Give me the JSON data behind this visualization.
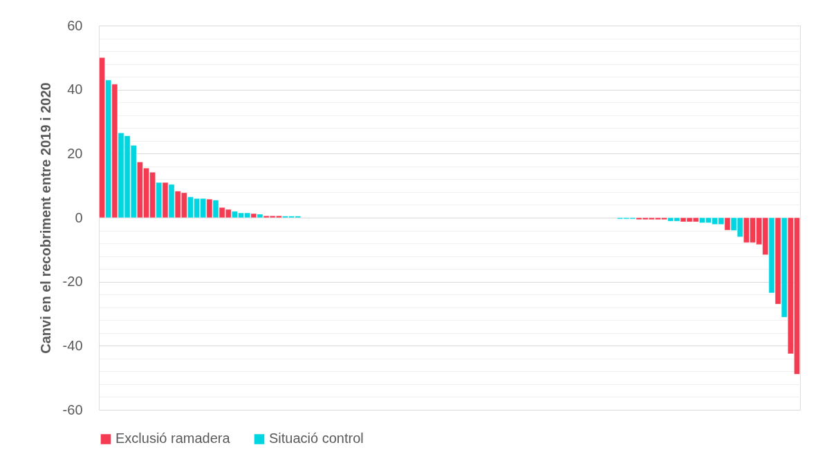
{
  "chart_data": {
    "type": "bar",
    "ylabel": "Canvi en el recobriment entre 2019 i 2020",
    "categories": [
      null,
      null,
      null,
      null,
      null,
      null,
      null,
      null,
      null,
      null,
      null,
      null,
      null,
      null,
      null,
      null,
      null,
      null,
      null,
      null,
      null,
      null,
      null,
      null,
      null,
      null,
      null,
      null,
      null,
      null,
      null,
      null,
      null,
      null,
      null,
      null,
      null,
      null,
      null,
      null,
      null,
      null,
      null,
      null,
      null,
      null,
      null,
      null,
      null,
      null,
      null,
      null,
      null,
      null,
      null,
      null,
      null,
      null,
      null,
      null,
      null,
      null,
      null,
      null,
      null,
      null,
      null,
      null,
      null,
      null,
      null,
      null,
      null,
      null,
      null,
      null,
      null,
      null,
      null,
      null,
      null,
      null,
      null,
      null,
      null,
      null,
      null,
      null,
      null,
      null,
      null,
      null,
      null,
      null,
      null,
      null,
      null,
      null,
      null,
      null,
      null,
      null,
      null,
      null,
      null,
      null,
      null,
      null,
      null,
      null,
      null
    ],
    "series": [
      {
        "name": "Exclusió ramadera",
        "color": "#f53b51",
        "values": [
          50,
          null,
          41.7,
          null,
          null,
          null,
          17.4,
          15.5,
          14.2,
          null,
          11,
          null,
          8.3,
          7.8,
          null,
          null,
          null,
          5.8,
          null,
          3.2,
          2.6,
          null,
          null,
          null,
          1.3,
          null,
          0.6,
          0.6,
          0.6,
          null,
          null,
          null,
          null,
          null,
          null,
          null,
          null,
          null,
          null,
          null,
          null,
          null,
          null,
          null,
          null,
          null,
          null,
          null,
          null,
          null,
          null,
          null,
          null,
          null,
          null,
          null,
          null,
          null,
          null,
          null,
          null,
          null,
          null,
          null,
          null,
          null,
          null,
          null,
          null,
          null,
          null,
          null,
          null,
          null,
          null,
          null,
          null,
          null,
          null,
          null,
          null,
          null,
          null,
          null,
          null,
          -0.6,
          -0.6,
          -0.6,
          -0.6,
          -0.6,
          null,
          null,
          -1.3,
          -1.3,
          -1.3,
          null,
          null,
          null,
          null,
          -3.9,
          null,
          null,
          -7.8,
          -7.8,
          -8.4,
          -11.6,
          null,
          -27,
          null,
          -42.5,
          -48.9
        ]
      },
      {
        "name": "Situació control",
        "color": "#00d5e0",
        "values": [
          null,
          43,
          null,
          26.5,
          25.6,
          22.6,
          null,
          null,
          null,
          11,
          null,
          10.4,
          null,
          null,
          6.5,
          6,
          6,
          null,
          5.5,
          null,
          null,
          2,
          1.5,
          1.5,
          null,
          1.1,
          null,
          null,
          null,
          0.5,
          0.5,
          0.5,
          null,
          null,
          null,
          null,
          null,
          null,
          null,
          null,
          null,
          null,
          null,
          null,
          null,
          null,
          null,
          null,
          null,
          null,
          null,
          null,
          null,
          null,
          null,
          null,
          null,
          null,
          null,
          null,
          null,
          null,
          null,
          null,
          null,
          null,
          null,
          null,
          null,
          null,
          null,
          null,
          null,
          null,
          null,
          null,
          null,
          null,
          null,
          null,
          null,
          null,
          -0.4,
          -0.4,
          -0.4,
          null,
          null,
          null,
          null,
          null,
          -1.1,
          -1.1,
          null,
          null,
          null,
          -1.6,
          -1.6,
          -2.1,
          -2.1,
          null,
          -4,
          -6,
          null,
          null,
          null,
          null,
          -23.5,
          null,
          -31.1,
          null,
          null
        ]
      }
    ],
    "ylim": [
      -60,
      60
    ],
    "yticks": [
      -60,
      {
        "value": -56,
        "label": null
      },
      {
        "value": -52,
        "label": null
      },
      {
        "value": -48,
        "label": null
      },
      {
        "value": -44,
        "label": null
      },
      -40,
      {
        "value": -36,
        "label": null
      },
      {
        "value": -32,
        "label": null
      },
      {
        "value": -28,
        "label": null
      },
      {
        "value": -24,
        "label": null
      },
      -20,
      {
        "value": -16,
        "label": null
      },
      {
        "value": -12,
        "label": null
      },
      {
        "value": -8,
        "label": null
      },
      {
        "value": -4,
        "label": null
      },
      0,
      {
        "value": 4,
        "label": null
      },
      {
        "value": 8,
        "label": null
      },
      {
        "value": 12,
        "label": null
      },
      {
        "value": 16,
        "label": null
      },
      20,
      {
        "value": 24,
        "label": null
      },
      {
        "value": 28,
        "label": null
      },
      {
        "value": 32,
        "label": null
      },
      {
        "value": 36,
        "label": null
      },
      40,
      {
        "value": 44,
        "label": null
      },
      {
        "value": 48,
        "label": null
      },
      {
        "value": 52,
        "label": null
      },
      {
        "value": 56,
        "label": null
      },
      60
    ],
    "grid": "y",
    "legend": "bottom"
  }
}
